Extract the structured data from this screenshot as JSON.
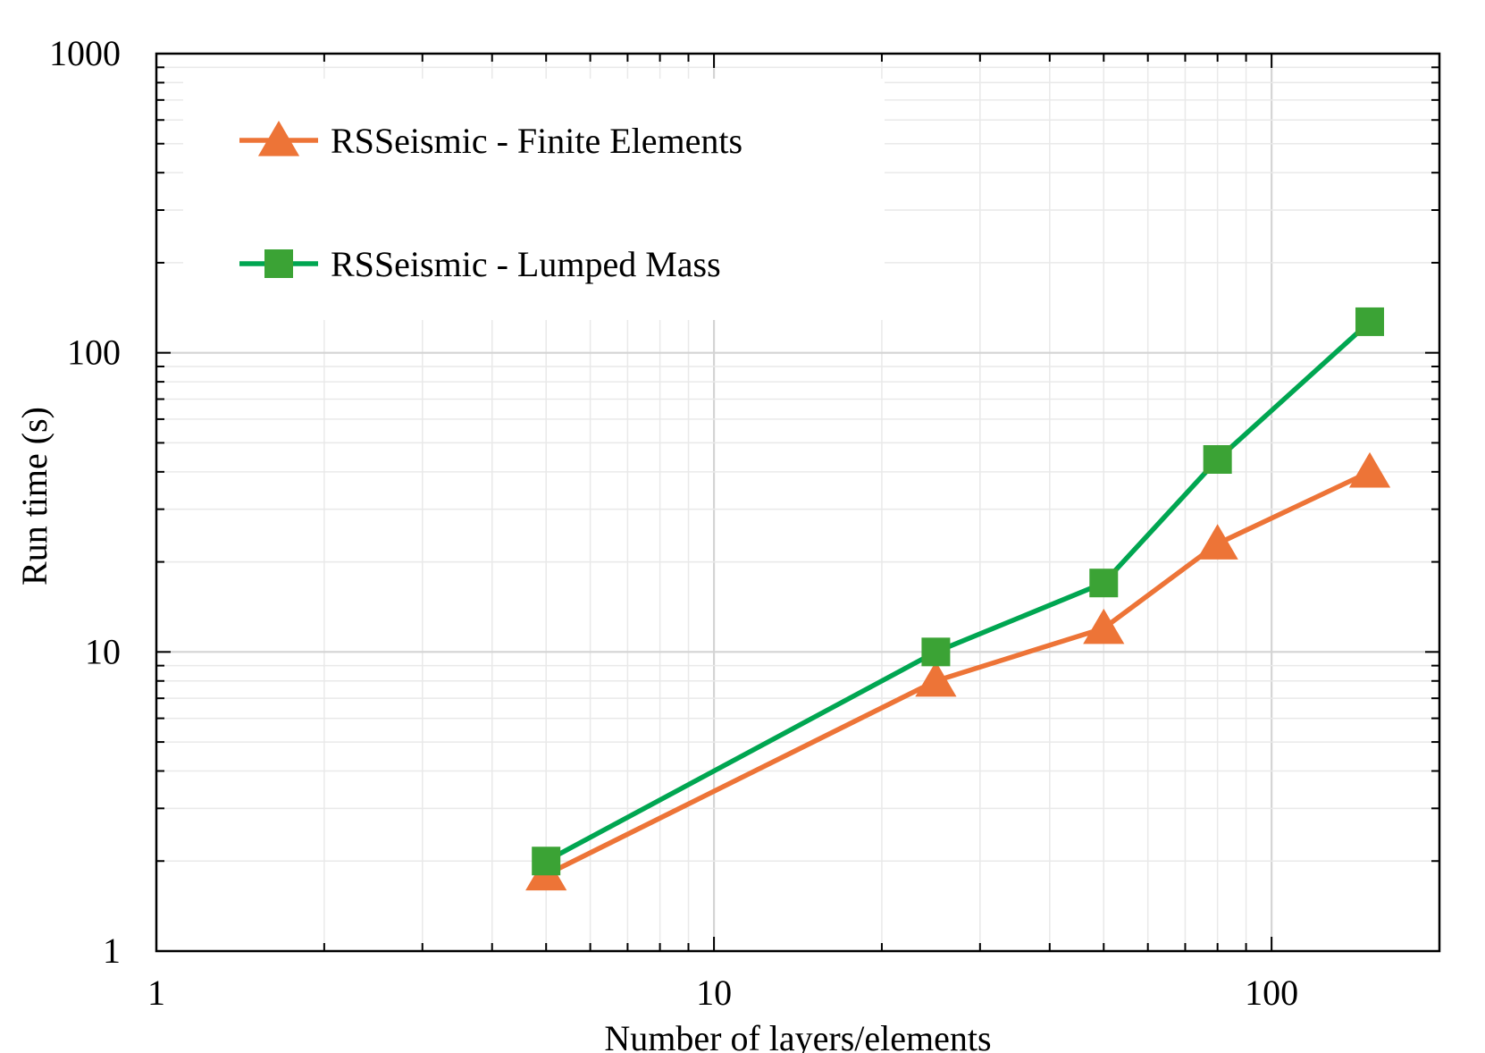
{
  "chart_data": {
    "type": "line",
    "xlabel": "Number of layers/elements",
    "ylabel": "Run time (s)",
    "xscale": "log",
    "yscale": "log",
    "xlim": [
      1,
      200
    ],
    "ylim": [
      1,
      1000
    ],
    "xticks": [
      1,
      10,
      100
    ],
    "xtick_labels": [
      "1",
      "10",
      "100"
    ],
    "yticks": [
      1,
      10,
      100,
      1000
    ],
    "ytick_labels": [
      "1",
      "10",
      "100",
      "1000"
    ],
    "grid": true,
    "legend_position": "top-left",
    "series": [
      {
        "name": "RSSeismic - Finite Elements",
        "color": "#ED7437",
        "marker": "triangle",
        "x": [
          5,
          25,
          50,
          80,
          150
        ],
        "y": [
          1.8,
          8,
          12,
          23,
          40
        ]
      },
      {
        "name": "RSSeismic - Lumped Mass",
        "color": "#00A651",
        "marker_color": "#3BA335",
        "marker": "square",
        "x": [
          5,
          25,
          50,
          80,
          150
        ],
        "y": [
          2,
          10,
          17,
          44,
          127
        ]
      }
    ]
  }
}
